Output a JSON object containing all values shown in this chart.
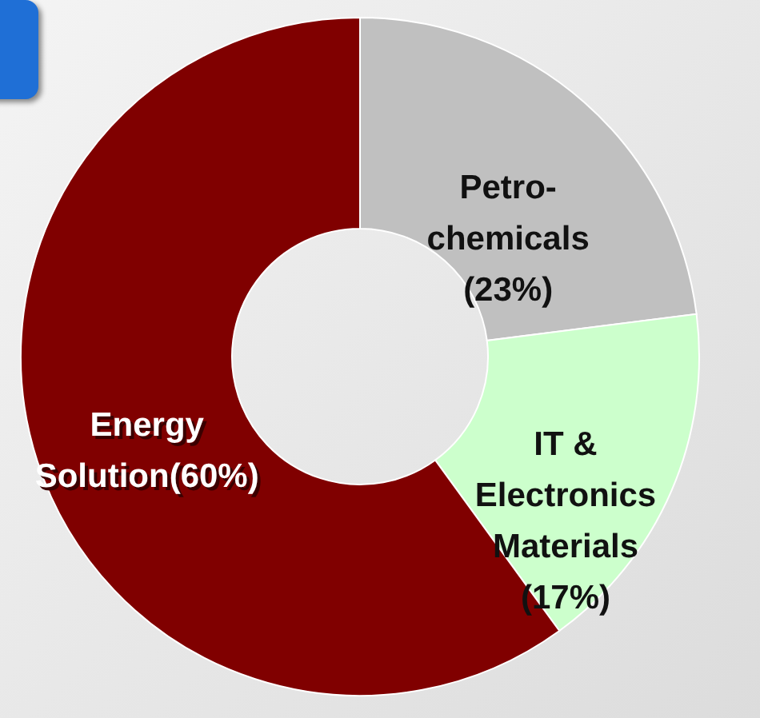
{
  "chart_data": {
    "type": "donut",
    "categories": [
      "Petro-\nchemicals",
      "IT &\nElectronics\nMaterials",
      "Energy\nSolution"
    ],
    "values": [
      23,
      17,
      60
    ],
    "colors": [
      "#c0c0c0",
      "#ccffcc",
      "#800000"
    ],
    "value_labels": [
      "\n(23%)",
      "\n(17%)",
      "(60%)"
    ]
  }
}
